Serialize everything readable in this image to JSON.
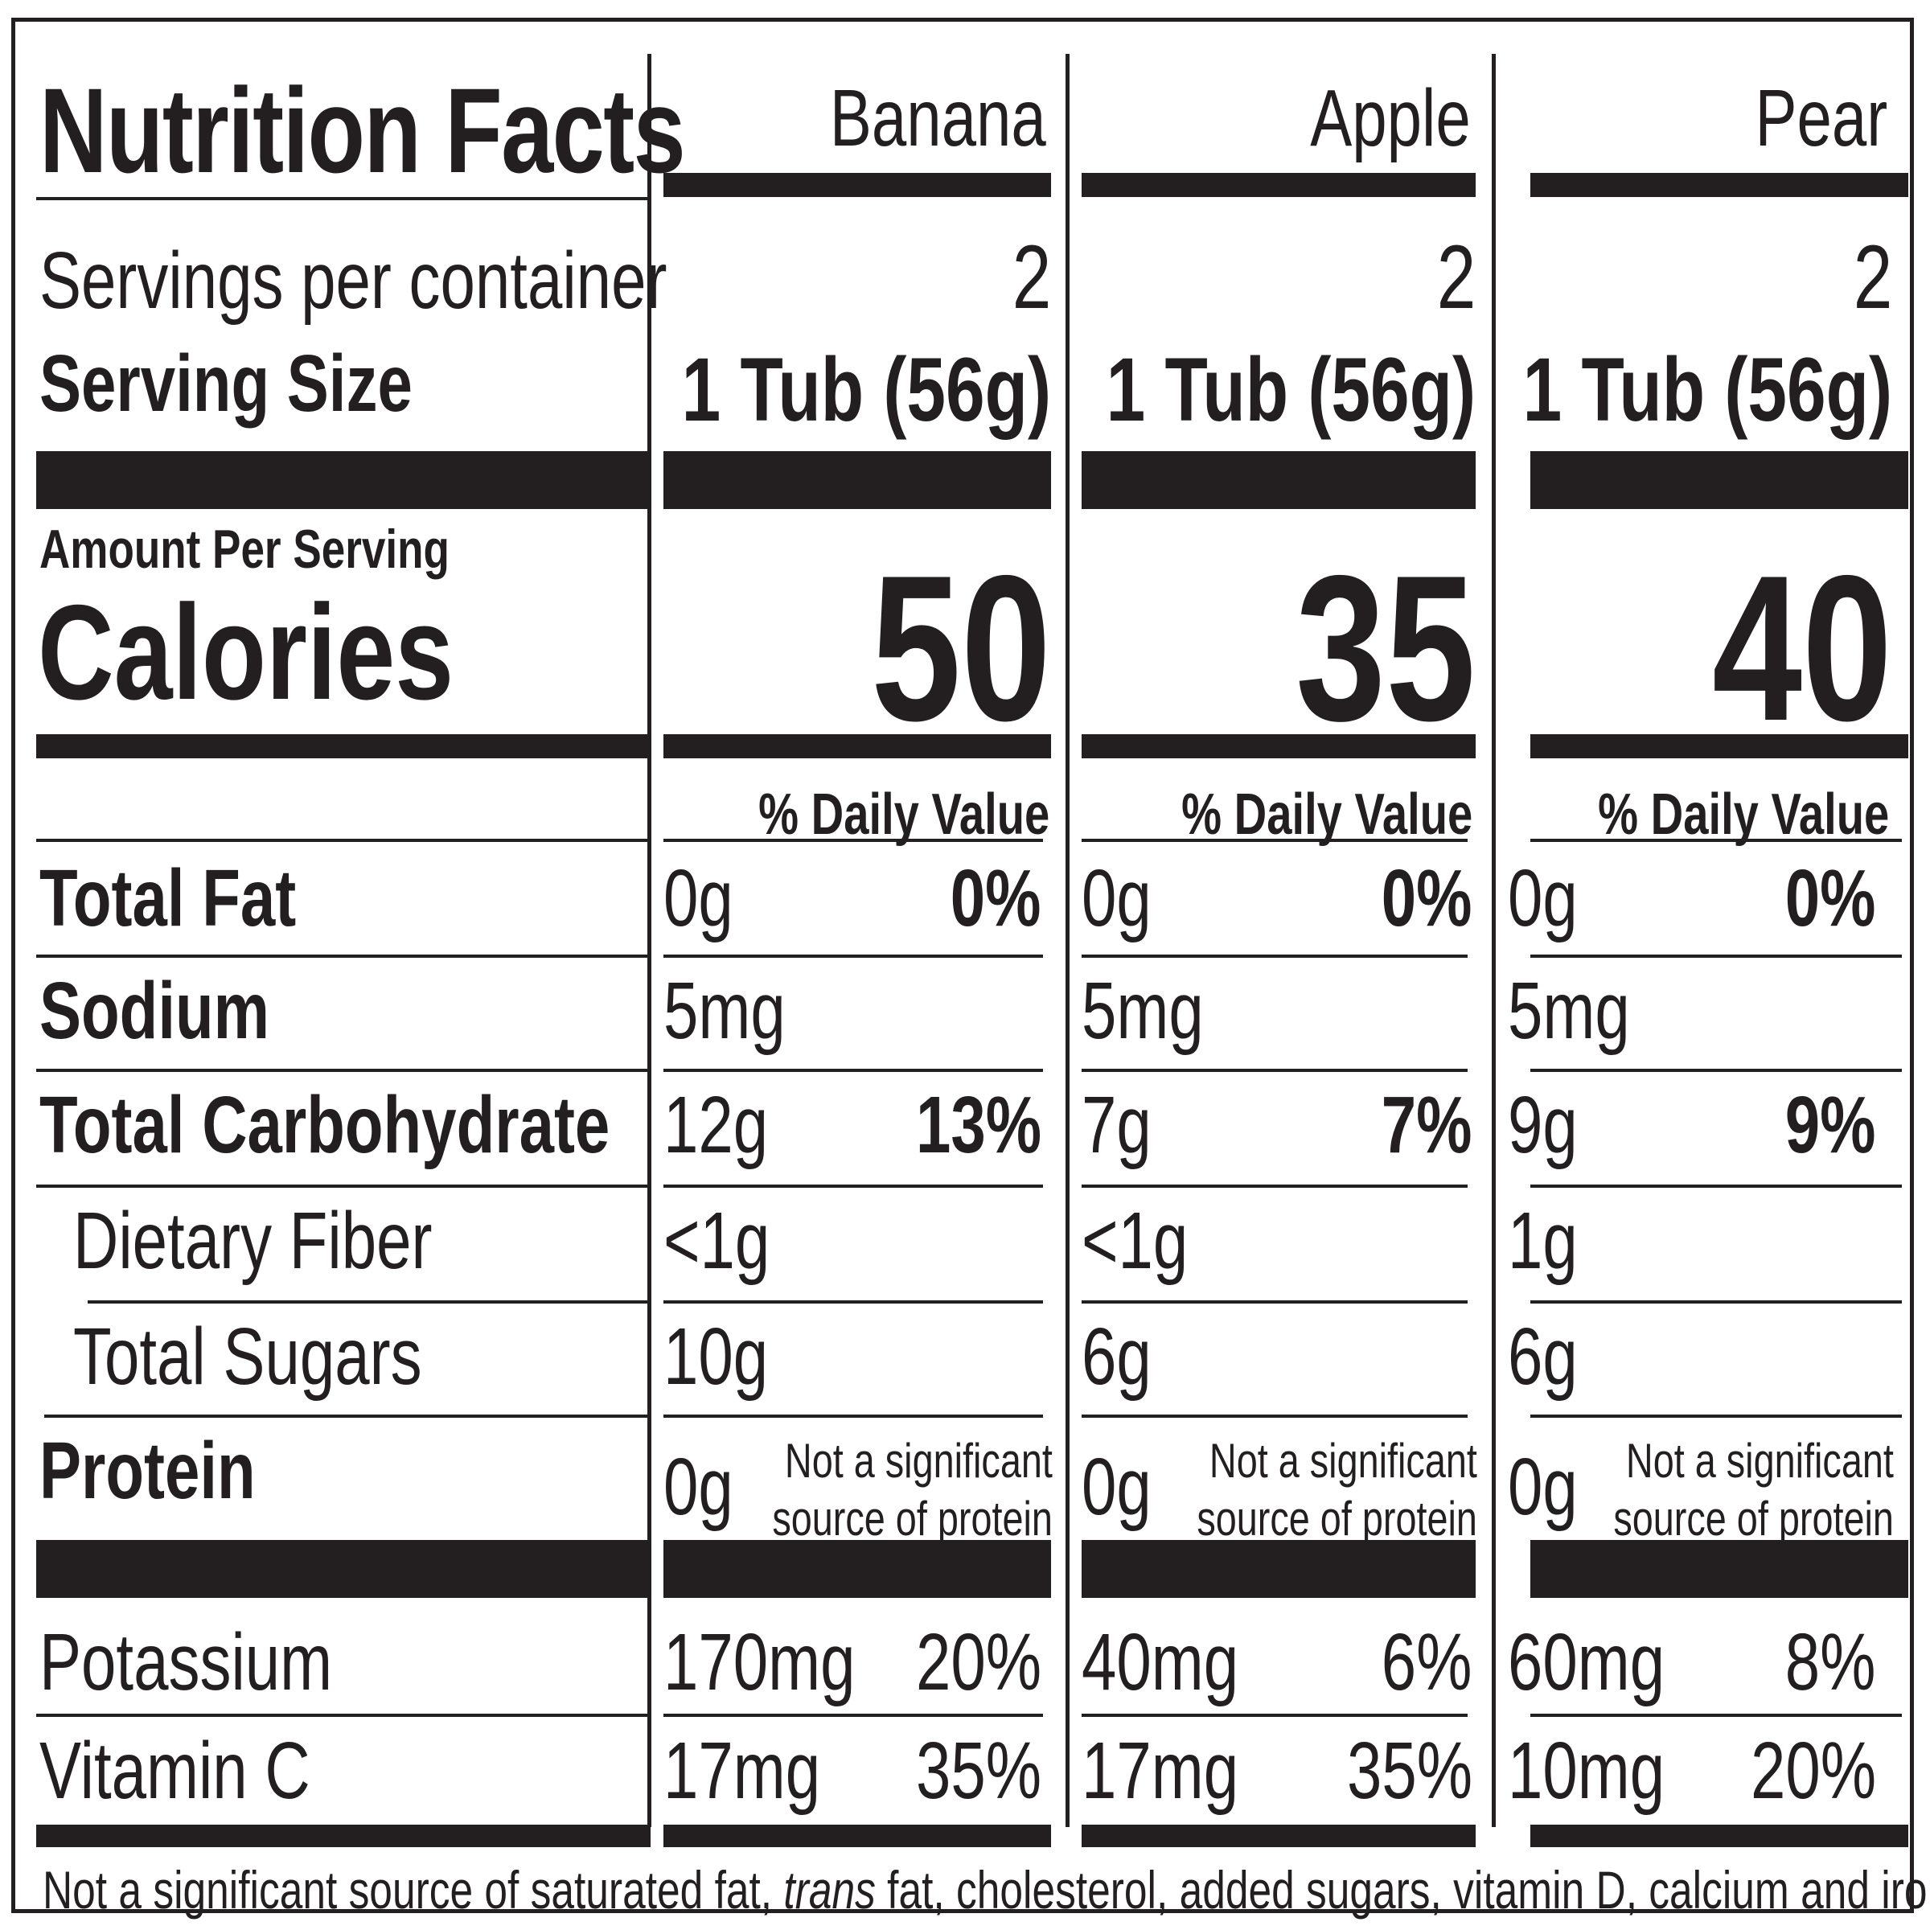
{
  "title": "Nutrition Facts",
  "labels": {
    "servings_per_container": "Servings per container",
    "serving_size": "Serving Size",
    "amount_per_serving": "Amount Per Serving",
    "calories": "Calories",
    "daily_value_header": "% Daily Value",
    "total_fat": "Total Fat",
    "sodium": "Sodium",
    "total_carbohydrate": "Total Carbohydrate",
    "dietary_fiber": "Dietary Fiber",
    "total_sugars": "Total Sugars",
    "protein": "Protein",
    "potassium": "Potassium",
    "vitamin_c": "Vitamin C"
  },
  "products": [
    {
      "name": "Banana",
      "servings": "2",
      "serving_size": "1 Tub (56g)",
      "calories": "50",
      "daily_value_header": "% Daily Value",
      "total_fat": "0g",
      "total_fat_dv": "0%",
      "sodium": "5mg",
      "total_carbohydrate": "12g",
      "total_carbohydrate_dv": "13%",
      "dietary_fiber": "<1g",
      "total_sugars": "10g",
      "protein": "0g",
      "protein_note_1": "Not a significant",
      "protein_note_2": "source of protein",
      "potassium": "170mg",
      "potassium_dv": "20%",
      "vitamin_c": "17mg",
      "vitamin_c_dv": "35%"
    },
    {
      "name": "Apple",
      "servings": "2",
      "serving_size": "1 Tub (56g)",
      "calories": "35",
      "daily_value_header": "% Daily Value",
      "total_fat": "0g",
      "total_fat_dv": "0%",
      "sodium": "5mg",
      "total_carbohydrate": "7g",
      "total_carbohydrate_dv": "7%",
      "dietary_fiber": "<1g",
      "total_sugars": "6g",
      "protein": "0g",
      "protein_note_1": "Not a significant",
      "protein_note_2": "source of protein",
      "potassium": "40mg",
      "potassium_dv": "6%",
      "vitamin_c": "17mg",
      "vitamin_c_dv": "35%"
    },
    {
      "name": "Pear",
      "servings": "2",
      "serving_size": "1 Tub (56g)",
      "calories": "40",
      "daily_value_header": "% Daily Value",
      "total_fat": "0g",
      "total_fat_dv": "0%",
      "sodium": "5mg",
      "total_carbohydrate": "9g",
      "total_carbohydrate_dv": "9%",
      "dietary_fiber": "1g",
      "total_sugars": "6g",
      "protein": "0g",
      "protein_note_1": "Not a significant",
      "protein_note_2": "source of protein",
      "potassium": "60mg",
      "potassium_dv": "8%",
      "vitamin_c": "10mg",
      "vitamin_c_dv": "20%"
    }
  ],
  "footnote": {
    "before": "Not a significant source of saturated fat, ",
    "trans": "trans",
    "after": " fat, cholesterol, added sugars, vitamin D, calcium and iron."
  }
}
